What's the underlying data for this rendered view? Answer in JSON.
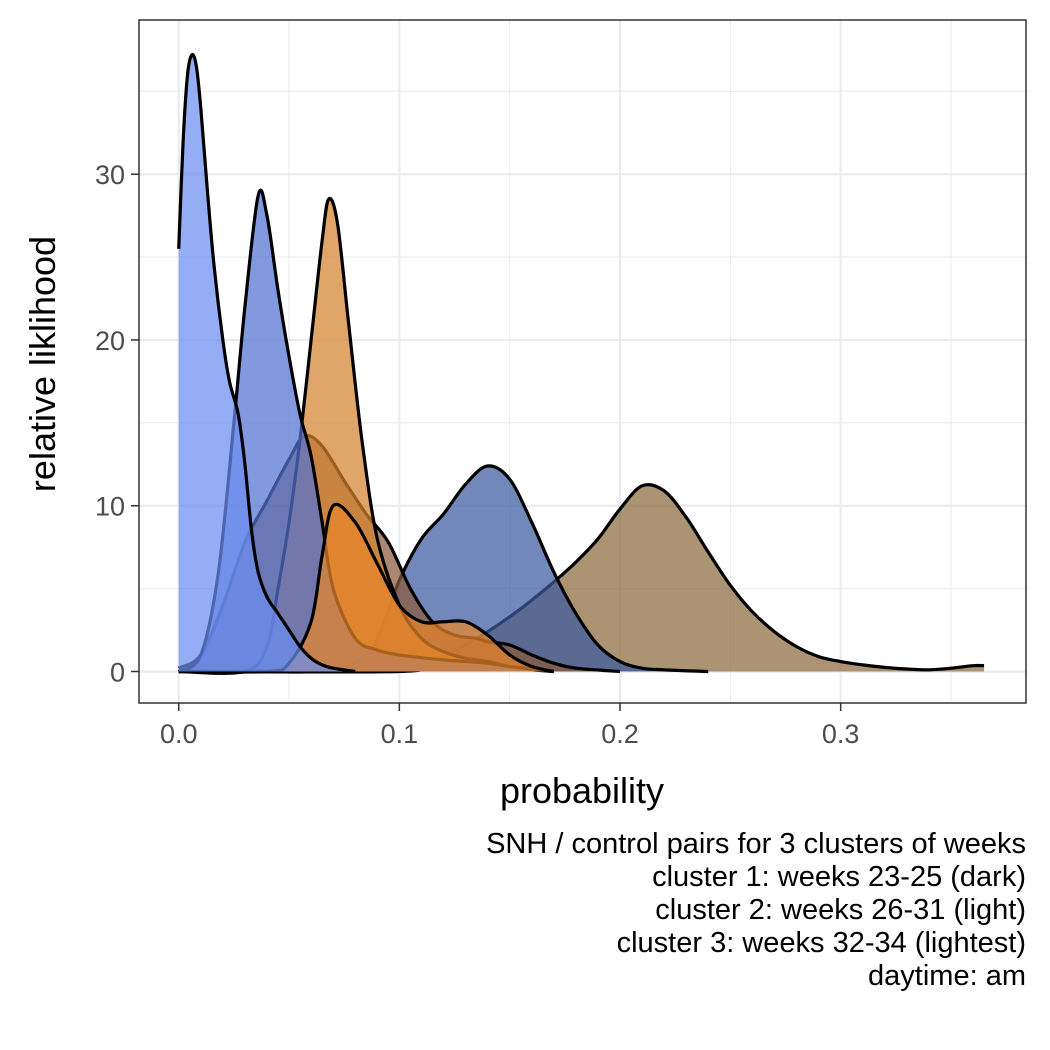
{
  "chart_data": {
    "type": "area",
    "xlabel": "probability",
    "ylabel": "relative liklihood",
    "xlim": [
      -0.018,
      0.384
    ],
    "ylim": [
      -1.9,
      39.3
    ],
    "x_ticks": [
      0.0,
      0.1,
      0.2,
      0.3
    ],
    "x_tick_labels": [
      "0.0",
      "0.1",
      "0.2",
      "0.3"
    ],
    "y_ticks": [
      0,
      10,
      20,
      30
    ],
    "y_tick_labels": [
      "0",
      "10",
      "20",
      "30"
    ],
    "grid": true,
    "legend": "none",
    "caption": [
      "SNH / control pairs for 3 clusters of weeks",
      "cluster 1: weeks 23-25 (dark)",
      "cluster 2: weeks 26-31 (light)",
      "cluster 3: weeks 32-34 (lightest)",
      "daytime: am"
    ],
    "series": [
      {
        "color": "#8b6a3e",
        "points": [
          [
            0.0,
            0.0
          ],
          [
            0.1,
            0.0
          ],
          [
            0.11,
            0.4
          ],
          [
            0.12,
            0.9
          ],
          [
            0.13,
            1.6
          ],
          [
            0.14,
            2.4
          ],
          [
            0.15,
            3.3
          ],
          [
            0.16,
            4.3
          ],
          [
            0.17,
            5.4
          ],
          [
            0.18,
            6.6
          ],
          [
            0.19,
            8.0
          ],
          [
            0.2,
            9.8
          ],
          [
            0.21,
            11.2
          ],
          [
            0.22,
            10.9
          ],
          [
            0.23,
            9.3
          ],
          [
            0.24,
            7.2
          ],
          [
            0.25,
            5.2
          ],
          [
            0.26,
            3.6
          ],
          [
            0.27,
            2.4
          ],
          [
            0.28,
            1.5
          ],
          [
            0.29,
            0.9
          ],
          [
            0.3,
            0.6
          ],
          [
            0.31,
            0.4
          ],
          [
            0.32,
            0.25
          ],
          [
            0.33,
            0.15
          ],
          [
            0.34,
            0.1
          ],
          [
            0.35,
            0.2
          ],
          [
            0.36,
            0.35
          ],
          [
            0.365,
            0.35
          ]
        ]
      },
      {
        "color": "#3c5aa0",
        "points": [
          [
            0.0,
            0.0
          ],
          [
            0.04,
            0.0
          ],
          [
            0.06,
            0.0
          ],
          [
            0.08,
            0.5
          ],
          [
            0.09,
            2.0
          ],
          [
            0.1,
            5.5
          ],
          [
            0.11,
            8.0
          ],
          [
            0.12,
            9.5
          ],
          [
            0.13,
            11.3
          ],
          [
            0.14,
            12.4
          ],
          [
            0.15,
            11.6
          ],
          [
            0.16,
            9.0
          ],
          [
            0.17,
            6.0
          ],
          [
            0.18,
            3.5
          ],
          [
            0.19,
            1.6
          ],
          [
            0.2,
            0.6
          ],
          [
            0.21,
            0.2
          ],
          [
            0.22,
            0.1
          ],
          [
            0.24,
            0.0
          ]
        ]
      },
      {
        "color": "#8b5a3c",
        "points": [
          [
            0.0,
            0.2
          ],
          [
            0.01,
            1.0
          ],
          [
            0.02,
            4.0
          ],
          [
            0.03,
            7.8
          ],
          [
            0.04,
            10.3
          ],
          [
            0.05,
            12.8
          ],
          [
            0.057,
            14.2
          ],
          [
            0.065,
            13.6
          ],
          [
            0.075,
            11.5
          ],
          [
            0.085,
            9.5
          ],
          [
            0.095,
            7.8
          ],
          [
            0.105,
            5.0
          ],
          [
            0.115,
            3.0
          ],
          [
            0.125,
            2.2
          ],
          [
            0.135,
            2.0
          ],
          [
            0.14,
            1.8
          ],
          [
            0.15,
            1.6
          ],
          [
            0.16,
            1.0
          ],
          [
            0.17,
            0.5
          ],
          [
            0.18,
            0.2
          ],
          [
            0.2,
            0.0
          ]
        ]
      },
      {
        "color": "#d4822e",
        "points": [
          [
            0.0,
            0.0
          ],
          [
            0.03,
            0.0
          ],
          [
            0.04,
            1.5
          ],
          [
            0.045,
            5.0
          ],
          [
            0.05,
            9.0
          ],
          [
            0.055,
            14.0
          ],
          [
            0.06,
            20.0
          ],
          [
            0.065,
            26.0
          ],
          [
            0.068,
            28.5
          ],
          [
            0.072,
            27.0
          ],
          [
            0.077,
            21.0
          ],
          [
            0.083,
            14.0
          ],
          [
            0.09,
            8.0
          ],
          [
            0.1,
            4.0
          ],
          [
            0.11,
            2.0
          ],
          [
            0.12,
            1.2
          ],
          [
            0.13,
            0.8
          ],
          [
            0.14,
            0.6
          ],
          [
            0.15,
            0.3
          ],
          [
            0.16,
            0.1
          ],
          [
            0.17,
            0.0
          ]
        ]
      },
      {
        "color": "#5272d2",
        "points": [
          [
            0.0,
            0.0
          ],
          [
            0.01,
            1.0
          ],
          [
            0.018,
            6.0
          ],
          [
            0.025,
            15.0
          ],
          [
            0.03,
            22.0
          ],
          [
            0.036,
            28.7
          ],
          [
            0.04,
            27.5
          ],
          [
            0.045,
            23.0
          ],
          [
            0.05,
            19.0
          ],
          [
            0.055,
            15.5
          ],
          [
            0.06,
            13.0
          ],
          [
            0.065,
            9.0
          ],
          [
            0.07,
            5.0
          ],
          [
            0.08,
            2.0
          ],
          [
            0.09,
            1.3
          ],
          [
            0.1,
            1.0
          ],
          [
            0.12,
            0.7
          ],
          [
            0.14,
            0.5
          ],
          [
            0.15,
            0.3
          ],
          [
            0.17,
            0.0
          ]
        ]
      },
      {
        "color": "#e8852a",
        "points": [
          [
            0.0,
            0.0
          ],
          [
            0.04,
            0.0
          ],
          [
            0.05,
            0.5
          ],
          [
            0.06,
            3.0
          ],
          [
            0.065,
            7.0
          ],
          [
            0.07,
            10.0
          ],
          [
            0.08,
            9.0
          ],
          [
            0.09,
            6.5
          ],
          [
            0.1,
            4.0
          ],
          [
            0.11,
            3.0
          ],
          [
            0.12,
            3.0
          ],
          [
            0.13,
            3.0
          ],
          [
            0.14,
            2.2
          ],
          [
            0.15,
            1.0
          ],
          [
            0.16,
            0.3
          ],
          [
            0.17,
            0.0
          ]
        ]
      },
      {
        "color": "#6b8ef0",
        "points": [
          [
            0.0,
            25.5
          ],
          [
            0.002,
            32.0
          ],
          [
            0.004,
            36.0
          ],
          [
            0.006,
            37.2
          ],
          [
            0.008,
            36.5
          ],
          [
            0.01,
            34.0
          ],
          [
            0.013,
            29.0
          ],
          [
            0.016,
            24.5
          ],
          [
            0.02,
            20.0
          ],
          [
            0.023,
            17.5
          ],
          [
            0.027,
            15.5
          ],
          [
            0.03,
            12.5
          ],
          [
            0.033,
            8.5
          ],
          [
            0.036,
            6.0
          ],
          [
            0.04,
            4.5
          ],
          [
            0.045,
            3.5
          ],
          [
            0.05,
            2.5
          ],
          [
            0.055,
            1.5
          ],
          [
            0.06,
            0.8
          ],
          [
            0.065,
            0.4
          ],
          [
            0.07,
            0.2
          ],
          [
            0.08,
            0.0
          ]
        ]
      }
    ]
  }
}
